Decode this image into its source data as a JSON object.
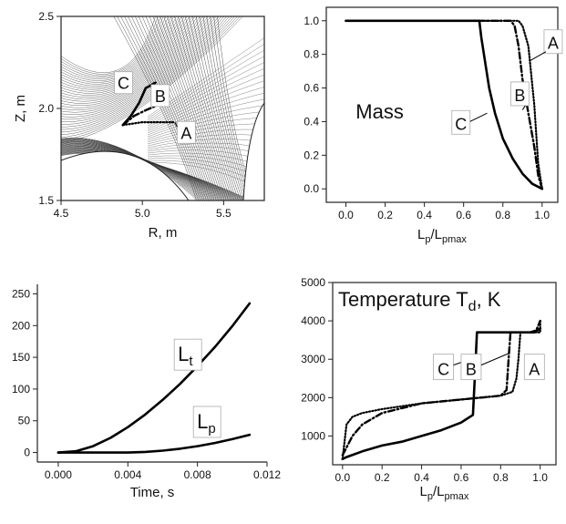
{
  "chart_data": [
    {
      "id": "geometry",
      "type": "line",
      "xlabel": "R, m",
      "ylabel": "Z, m",
      "xlim": [
        4.5,
        5.75
      ],
      "ylim": [
        1.5,
        2.5
      ],
      "xticks": [
        4.5,
        5.0,
        5.5
      ],
      "yticks": [
        1.5,
        2.0,
        2.5
      ],
      "xtick_labels": [
        "4.5",
        "5.0",
        "5.5"
      ],
      "ytick_labels": [
        "1.5",
        "2.0",
        "2.5"
      ],
      "background": "magnetic-flux-grid",
      "series": [
        {
          "name": "A",
          "style": "dotted",
          "x": [
            4.88,
            5.0,
            5.1,
            5.2
          ],
          "y": [
            1.91,
            1.925,
            1.925,
            1.925
          ]
        },
        {
          "name": "B",
          "style": "dashdot",
          "x": [
            4.88,
            4.95,
            5.02,
            5.1
          ],
          "y": [
            1.91,
            1.96,
            1.99,
            2.02
          ]
        },
        {
          "name": "C",
          "style": "solid",
          "x": [
            4.88,
            4.93,
            4.98,
            5.02,
            5.08
          ],
          "y": [
            1.91,
            1.96,
            2.03,
            2.11,
            2.14
          ]
        }
      ],
      "annotations": [
        {
          "text": "A",
          "x": 5.27,
          "y": 1.87
        },
        {
          "text": "B",
          "x": 5.11,
          "y": 2.06
        },
        {
          "text": "C",
          "x": 4.94,
          "y": 2.13
        }
      ]
    },
    {
      "id": "mass",
      "type": "line",
      "xlabel_main": "L",
      "xlabel_sub1": "p",
      "xlabel_mid": "/L",
      "xlabel_sub2": "p",
      "xlabel_sub3": "max",
      "xlim": [
        -0.1,
        1.08
      ],
      "ylim": [
        -0.08,
        1.08
      ],
      "xticks": [
        0.0,
        0.2,
        0.4,
        0.6,
        0.8,
        1.0
      ],
      "yticks": [
        0.0,
        0.2,
        0.4,
        0.6,
        0.8,
        1.0
      ],
      "xtick_labels": [
        "0.0",
        "0.2",
        "0.4",
        "0.6",
        "0.8",
        "1.0"
      ],
      "ytick_labels": [
        "0.0",
        "0.2",
        "0.4",
        "0.6",
        "0.8",
        "1.0"
      ],
      "panel_label": "Mass",
      "series": [
        {
          "name": "A",
          "style": "dotted",
          "x": [
            0.0,
            0.85,
            0.88,
            0.9,
            0.93,
            0.96,
            0.98,
            1.0
          ],
          "y": [
            1.0,
            1.0,
            1.0,
            0.97,
            0.85,
            0.5,
            0.15,
            0.0
          ]
        },
        {
          "name": "B",
          "style": "dashdot",
          "x": [
            0.0,
            0.84,
            0.86,
            0.88,
            0.9,
            0.93,
            0.96,
            0.98,
            1.0
          ],
          "y": [
            1.0,
            1.0,
            0.97,
            0.85,
            0.65,
            0.45,
            0.25,
            0.08,
            0.0
          ]
        },
        {
          "name": "C",
          "style": "solid",
          "x": [
            0.0,
            0.68,
            0.69,
            0.71,
            0.73,
            0.76,
            0.8,
            0.85,
            0.9,
            0.95,
            1.0
          ],
          "y": [
            1.0,
            1.0,
            0.9,
            0.75,
            0.6,
            0.45,
            0.3,
            0.18,
            0.09,
            0.03,
            0.0
          ]
        }
      ],
      "annotations": [
        {
          "text": "A",
          "x": 1.01,
          "y": 0.87
        },
        {
          "text": "B",
          "x": 0.84,
          "y": 0.56
        },
        {
          "text": "C",
          "x": 0.54,
          "y": 0.39
        }
      ]
    },
    {
      "id": "length",
      "type": "line",
      "xlabel": "Time, s",
      "ylabel": "",
      "xlim": [
        -0.0012,
        0.012
      ],
      "ylim": [
        -15,
        265
      ],
      "xticks": [
        0.0,
        0.004,
        0.008,
        0.012
      ],
      "yticks": [
        0,
        50,
        100,
        150,
        200,
        250
      ],
      "xtick_labels": [
        "0.000",
        "0.004",
        "0.008",
        "0.012"
      ],
      "ytick_labels": [
        "0",
        "50",
        "100",
        "150",
        "200",
        "250"
      ],
      "series": [
        {
          "name": "Lt",
          "label_main": "L",
          "label_sub": "t",
          "style": "solid",
          "x": [
            0.0,
            0.001,
            0.002,
            0.003,
            0.004,
            0.005,
            0.006,
            0.007,
            0.008,
            0.009,
            0.01,
            0.011
          ],
          "y": [
            0,
            2,
            10,
            23,
            40,
            60,
            83,
            108,
            136,
            166,
            199,
            235
          ]
        },
        {
          "name": "Lp",
          "label_main": "L",
          "label_sub": "p",
          "style": "solid",
          "x": [
            0.0,
            0.002,
            0.004,
            0.005,
            0.006,
            0.007,
            0.008,
            0.009,
            0.01,
            0.011
          ],
          "y": [
            0,
            0,
            0,
            1,
            3,
            6,
            10,
            15,
            21,
            28
          ]
        }
      ],
      "annotations": [
        {
          "text_main": "L",
          "text_sub": "t",
          "x": 0.0074,
          "y": 147
        },
        {
          "text_main": "L",
          "text_sub": "p",
          "x": 0.0085,
          "y": 41
        }
      ]
    },
    {
      "id": "temperature",
      "type": "line",
      "panel_label_main": "Temperature T",
      "panel_label_sub": "d",
      "panel_label_tail": ", K",
      "xlabel_main": "L",
      "xlabel_sub1": "p",
      "xlabel_mid": "/L",
      "xlabel_sub2": "p",
      "xlabel_sub3": "max",
      "xlim": [
        -0.05,
        1.08
      ],
      "ylim": [
        250,
        5000
      ],
      "xticks": [
        0.0,
        0.2,
        0.4,
        0.6,
        0.8,
        1.0
      ],
      "yticks": [
        1000,
        2000,
        3000,
        4000,
        5000
      ],
      "xtick_labels": [
        "0.0",
        "0.2",
        "0.4",
        "0.6",
        "0.8",
        "1.0"
      ],
      "ytick_labels": [
        "1000",
        "2000",
        "3000",
        "4000",
        "5000"
      ],
      "series": [
        {
          "name": "A",
          "style": "dotted",
          "x": [
            0.0,
            0.02,
            0.05,
            0.1,
            0.2,
            0.4,
            0.6,
            0.8,
            0.86,
            0.88,
            0.89,
            0.9,
            0.95,
            1.0,
            1.0
          ],
          "y": [
            400,
            1300,
            1500,
            1600,
            1700,
            1850,
            1950,
            2050,
            2150,
            2500,
            3000,
            3700,
            3700,
            3700,
            4050
          ]
        },
        {
          "name": "B",
          "style": "dashdot",
          "x": [
            0.0,
            0.02,
            0.05,
            0.1,
            0.2,
            0.4,
            0.6,
            0.8,
            0.83,
            0.84,
            0.85,
            0.9,
            0.95,
            0.98,
            1.0
          ],
          "y": [
            500,
            700,
            1000,
            1300,
            1600,
            1850,
            1950,
            2050,
            2200,
            3000,
            3700,
            3700,
            3700,
            3750,
            4000
          ]
        },
        {
          "name": "C",
          "style": "solid",
          "x": [
            0.0,
            0.02,
            0.1,
            0.2,
            0.3,
            0.4,
            0.5,
            0.6,
            0.66,
            0.67,
            0.68,
            0.7,
            0.8,
            0.9,
            0.97,
            1.0
          ],
          "y": [
            400,
            450,
            600,
            750,
            850,
            1000,
            1150,
            1350,
            1550,
            2600,
            3700,
            3700,
            3700,
            3700,
            3700,
            3800
          ]
        }
      ],
      "annotations": [
        {
          "text": "C",
          "x": 0.46,
          "y": 2800
        },
        {
          "text": "B",
          "x": 0.6,
          "y": 2800
        },
        {
          "text": "A",
          "x": 0.92,
          "y": 2800
        }
      ]
    }
  ]
}
